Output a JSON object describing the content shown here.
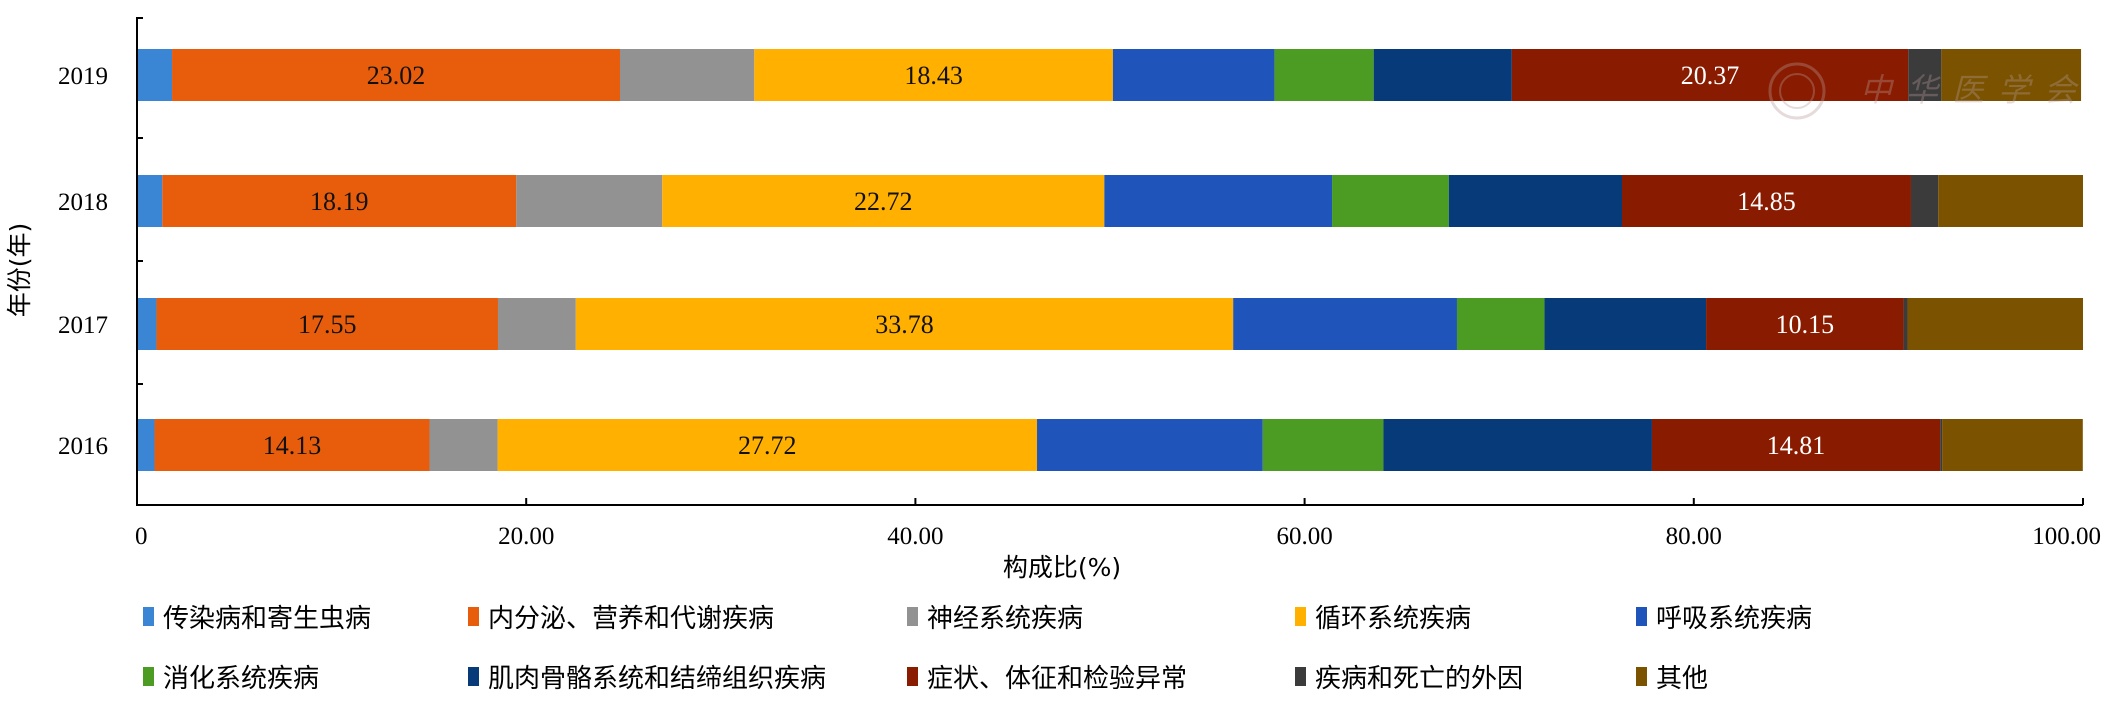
{
  "chart_data": {
    "type": "bar",
    "orientation": "horizontal",
    "stacked": true,
    "categories": [
      "2019",
      "2018",
      "2017",
      "2016"
    ],
    "xlabel": "构成比(%)",
    "ylabel": "年份(年)",
    "xlim": [
      0,
      100
    ],
    "xticks": [
      "0",
      "20.00",
      "40.00",
      "60.00",
      "80.00",
      "100.00"
    ],
    "legend_position": "bottom",
    "grid": false,
    "series": [
      {
        "name": "传染病和寄生虫病",
        "color": "#3a86d4",
        "values": [
          1.8,
          1.3,
          1.0,
          0.9
        ]
      },
      {
        "name": "内分泌、营养和代谢疾病",
        "color": "#e85d0c",
        "values": [
          23.02,
          18.19,
          17.55,
          14.13
        ]
      },
      {
        "name": "神经系统疾病",
        "color": "#929292",
        "values": [
          6.9,
          7.5,
          4.0,
          3.5
        ]
      },
      {
        "name": "循环系统疾病",
        "color": "#ffb000",
        "values": [
          18.43,
          22.72,
          33.78,
          27.72
        ]
      },
      {
        "name": "呼吸系统疾病",
        "color": "#1f54bb",
        "values": [
          8.3,
          11.7,
          11.5,
          11.6
        ]
      },
      {
        "name": "消化系统疾病",
        "color": "#4c9c23",
        "values": [
          5.1,
          6.0,
          4.5,
          6.2
        ]
      },
      {
        "name": "肌肉骨骼系统和结缔组织疾病",
        "color": "#063a78",
        "values": [
          7.1,
          8.9,
          8.3,
          13.8
        ]
      },
      {
        "name": "症状、体征和检验异常",
        "color": "#891c00",
        "values": [
          20.37,
          14.85,
          10.15,
          14.81
        ]
      },
      {
        "name": "疾病和死亡的外因",
        "color": "#3b3b3b",
        "values": [
          1.7,
          1.4,
          0.2,
          0.1
        ]
      },
      {
        "name": "其他",
        "color": "#7a5200",
        "values": [
          7.18,
          7.44,
          9.02,
          7.23
        ]
      }
    ],
    "labeled_series": [
      1,
      3,
      7
    ]
  },
  "watermark": {
    "text": "中华医学会"
  }
}
